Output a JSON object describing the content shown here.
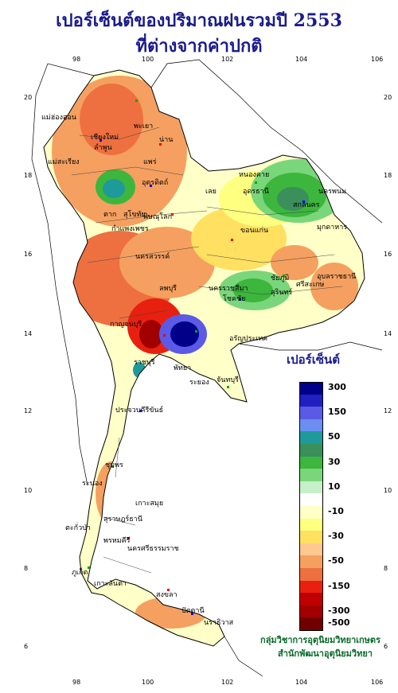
{
  "title": {
    "line1": "เปอร์เซ็นต์ของปริมาณฝนรวมปี  2553",
    "line2": "ที่ต่างจากค่าปกติ"
  },
  "axes": {
    "lon_ticks": [
      "98",
      "100",
      "102",
      "104",
      "106"
    ],
    "lat_ticks": [
      "20",
      "18",
      "16",
      "14",
      "12",
      "10",
      "8",
      "6"
    ]
  },
  "legend": {
    "title": "เปอร์เซ็นต์",
    "items": [
      {
        "color": "#00008b",
        "label": "300"
      },
      {
        "color": "#2020c0",
        "label": ""
      },
      {
        "color": "#5a5ae6",
        "label": "150"
      },
      {
        "color": "#6b8ef0",
        "label": ""
      },
      {
        "color": "#1e9a9a",
        "label": "50"
      },
      {
        "color": "#3a8f5a",
        "label": ""
      },
      {
        "color": "#3cb63c",
        "label": "30"
      },
      {
        "color": "#7ad67a",
        "label": ""
      },
      {
        "color": "#c8f0c8",
        "label": "10"
      },
      {
        "color": "#ffffff",
        "label": ""
      },
      {
        "color": "#ffffc8",
        "label": "-10"
      },
      {
        "color": "#ffff80",
        "label": ""
      },
      {
        "color": "#ffe060",
        "label": "-30"
      },
      {
        "color": "#ffc890",
        "label": ""
      },
      {
        "color": "#f5a060",
        "label": "-50"
      },
      {
        "color": "#ee7040",
        "label": ""
      },
      {
        "color": "#e82010",
        "label": "-150"
      },
      {
        "color": "#c00000",
        "label": ""
      },
      {
        "color": "#a00000",
        "label": "-300"
      },
      {
        "color": "#700000",
        "label": "-500"
      }
    ]
  },
  "credits": {
    "line1": "กลุ่มวิชาการอุตุนิยมวิทยาเกษตร",
    "line2": "สำนักพัฒนาอุตุนิยมวิทยา"
  },
  "provinces": [
    {
      "name": "แม่ฮ่องสอน",
      "key": "mhs"
    },
    {
      "name": "เชียงใหม่",
      "key": "cm"
    },
    {
      "name": "พะเยา",
      "key": "pyo"
    },
    {
      "name": "น่าน",
      "key": "nan"
    },
    {
      "name": "ลำพูน",
      "key": "lpn"
    },
    {
      "name": "แม่สะเรียง",
      "key": "msr"
    },
    {
      "name": "แพร่",
      "key": "pre"
    },
    {
      "name": "อุตรดิตถ์",
      "key": "utt"
    },
    {
      "name": "ตาก",
      "key": "tak"
    },
    {
      "name": "สุโขทัย",
      "key": "skt"
    },
    {
      "name": "หนองคาย",
      "key": "nky"
    },
    {
      "name": "อุดรธานี",
      "key": "udn"
    },
    {
      "name": "นครพนม",
      "key": "nkp"
    },
    {
      "name": "สกลนคร",
      "key": "snk"
    },
    {
      "name": "เลย",
      "key": "loei"
    },
    {
      "name": "พิษณุโลก",
      "key": "plk"
    },
    {
      "name": "กำแพงเพชร",
      "key": "kpp"
    },
    {
      "name": "ขอนแก่น",
      "key": "kkn"
    },
    {
      "name": "มุกดาหาร",
      "key": "mdh"
    },
    {
      "name": "นครสวรรค์",
      "key": "nsw"
    },
    {
      "name": "อุบลราชธานี",
      "key": "ubn"
    },
    {
      "name": "ชัยภูมิ",
      "key": "cyp"
    },
    {
      "name": "นครราชสีมา",
      "key": "nma"
    },
    {
      "name": "ศรีสะเกษ",
      "key": "ssk"
    },
    {
      "name": "สุรินทร์",
      "key": "srn"
    },
    {
      "name": "โชคชัย",
      "key": "chk"
    },
    {
      "name": "ลพบุรี",
      "key": "lbr"
    },
    {
      "name": "กาญจนบุรี",
      "key": "kan"
    },
    {
      "name": "อรัญประเทศ",
      "key": "ary"
    },
    {
      "name": "ราชบุรี",
      "key": "rat"
    },
    {
      "name": "ระยอง",
      "key": "ryg"
    },
    {
      "name": "จันทบุรี",
      "key": "ctb"
    },
    {
      "name": "ประจวบคีรีขันธ์",
      "key": "pkk"
    },
    {
      "name": "ชุมพร",
      "key": "cph"
    },
    {
      "name": "ระนอง",
      "key": "rng"
    },
    {
      "name": "เกาะสมุย",
      "key": "sam"
    },
    {
      "name": "สุราษฎร์ธานี",
      "key": "srt"
    },
    {
      "name": "ตะกั่วป่า",
      "key": "tkp"
    },
    {
      "name": "พรหมคีรี",
      "key": "prk"
    },
    {
      "name": "นครศรีธรรมราช",
      "key": "nst"
    },
    {
      "name": "ภูเก็ต",
      "key": "pkt"
    },
    {
      "name": "เกาะลันตา",
      "key": "ktl"
    },
    {
      "name": "สงขลา",
      "key": "skl"
    },
    {
      "name": "ปัตตานี",
      "key": "ptn"
    },
    {
      "name": "นราธิวาส",
      "key": "nrt"
    },
    {
      "name": "พัทยา",
      "key": "pty"
    }
  ]
}
